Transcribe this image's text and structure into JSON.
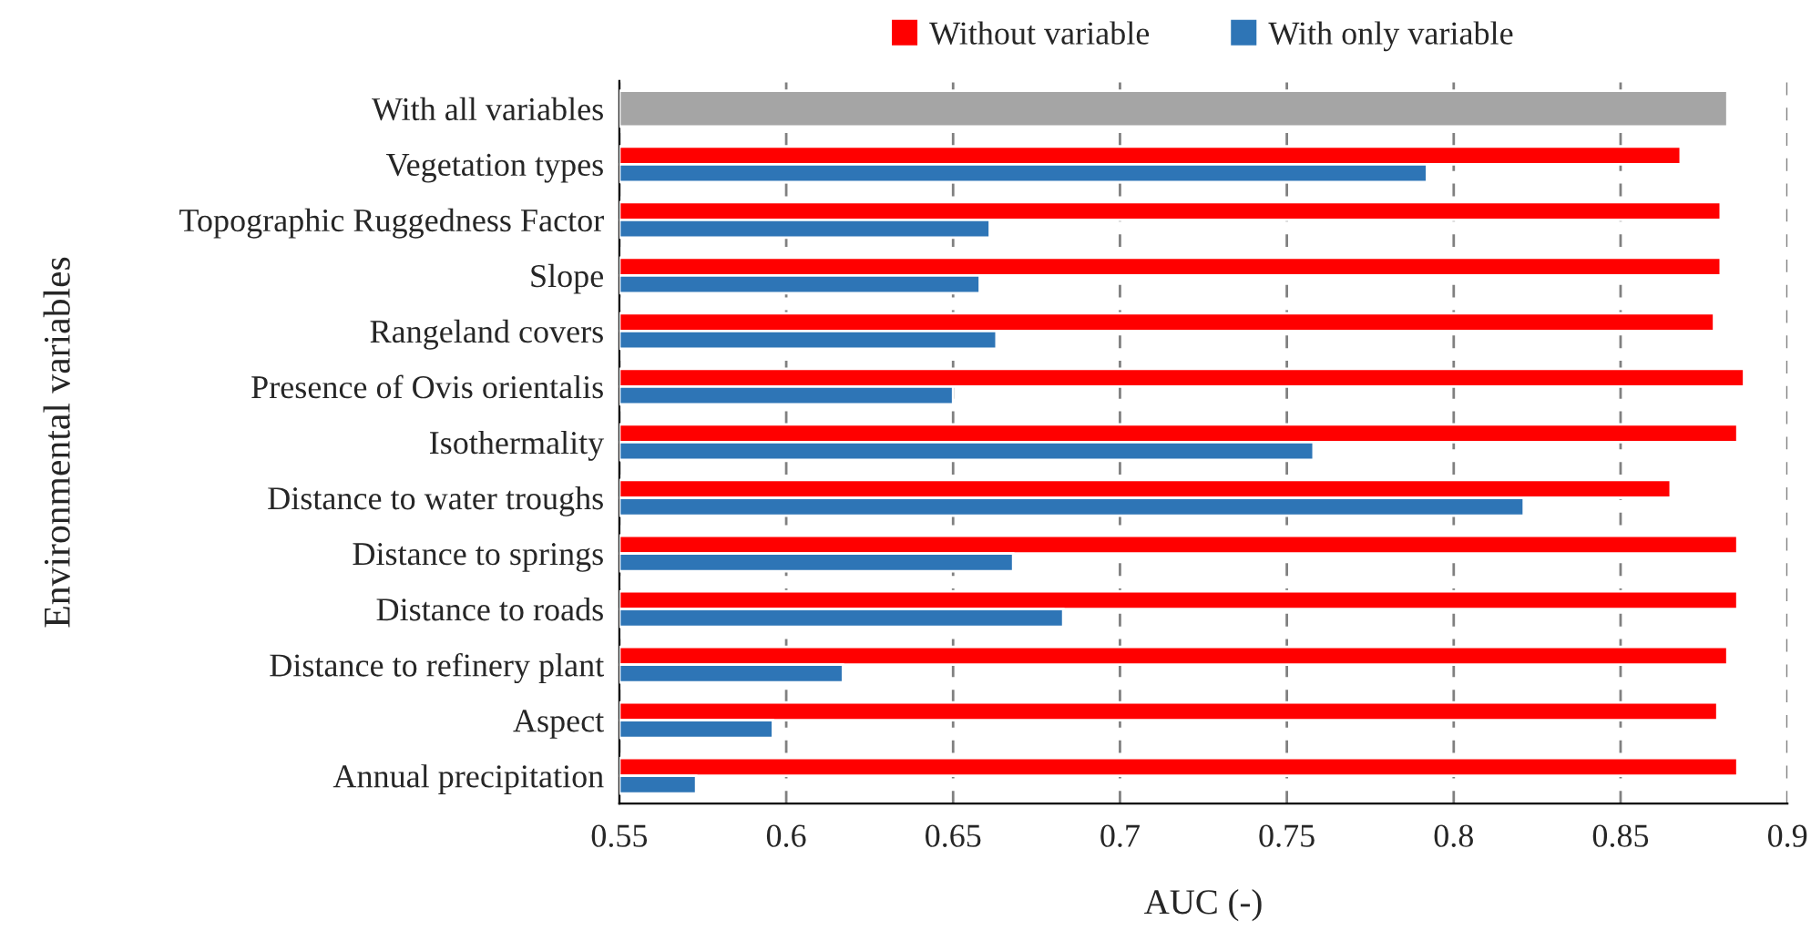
{
  "chart_data": {
    "type": "bar",
    "orientation": "horizontal",
    "xlabel": "AUC (-)",
    "ylabel": "Environmental variables",
    "categories": [
      "With all variables",
      "Vegetation types",
      "Topographic Ruggedness Factor",
      "Slope",
      "Rangeland covers",
      "Presence of Ovis orientalis",
      "Isothermality",
      "Distance to water troughs",
      "Distance to springs",
      "Distance to roads",
      "Distance to refinery plant",
      "Aspect",
      "Annual precipitation"
    ],
    "series": [
      {
        "name": "Without variable",
        "color": "#ff0000",
        "values": [
          null,
          0.868,
          0.88,
          0.88,
          0.878,
          0.887,
          0.885,
          0.865,
          0.885,
          0.885,
          0.882,
          0.879,
          0.885
        ]
      },
      {
        "name": "With only variable",
        "color": "#2e75b6",
        "values": [
          null,
          0.792,
          0.661,
          0.658,
          0.663,
          0.65,
          0.758,
          0.821,
          0.668,
          0.683,
          0.617,
          0.596,
          0.573
        ]
      },
      {
        "color": "#a5a5a5",
        "values": [
          0.882,
          null,
          null,
          null,
          null,
          null,
          null,
          null,
          null,
          null,
          null,
          null,
          null
        ]
      }
    ],
    "xlim": [
      0.55,
      0.9
    ],
    "xticks": [
      0.55,
      0.6,
      0.65,
      0.7,
      0.75,
      0.8,
      0.85,
      0.9
    ],
    "grid": "x",
    "legend": "top"
  }
}
